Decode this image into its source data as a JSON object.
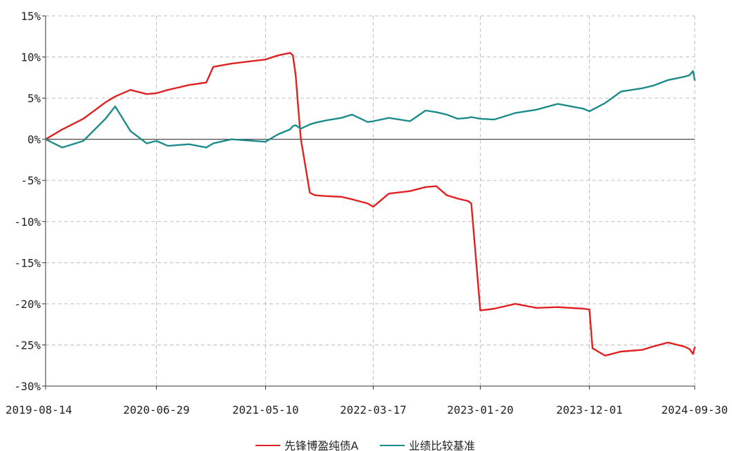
{
  "chart_data": {
    "type": "line",
    "title": "",
    "xlabel": "",
    "ylabel": "",
    "ylim": [
      -30,
      15
    ],
    "grid": true,
    "legend_position": "bottom-center",
    "x_tick_labels": [
      "2019-08-14",
      "2020-06-29",
      "2021-05-10",
      "2022-03-17",
      "2023-01-20",
      "2023-12-01",
      "2024-09-30"
    ],
    "y_ticks": [
      15,
      10,
      5,
      0,
      -5,
      -10,
      -15,
      -20,
      -25,
      -30
    ],
    "y_tick_labels": [
      "15%",
      "10%",
      "5%",
      "0%",
      "-5%",
      "-10%",
      "-15%",
      "-20%",
      "-25%",
      "-30%"
    ],
    "x": [
      "2019-08-14",
      "2019-10-01",
      "2019-12-01",
      "2020-02-03",
      "2020-03-02",
      "2020-04-15",
      "2020-06-01",
      "2020-06-29",
      "2020-08-01",
      "2020-10-01",
      "2020-11-20",
      "2020-12-10",
      "2021-02-01",
      "2021-05-10",
      "2021-06-15",
      "2021-07-20",
      "2021-07-28",
      "2021-08-05",
      "2021-08-12",
      "2021-08-20",
      "2021-09-15",
      "2021-09-30",
      "2021-11-01",
      "2021-12-15",
      "2022-01-15",
      "2022-03-01",
      "2022-03-17",
      "2022-05-01",
      "2022-07-01",
      "2022-08-15",
      "2022-09-15",
      "2022-10-15",
      "2022-11-15",
      "2022-12-15",
      "2022-12-25",
      "2023-01-20",
      "2023-03-01",
      "2023-05-01",
      "2023-07-01",
      "2023-09-01",
      "2023-11-15",
      "2023-12-01",
      "2023-12-10",
      "2024-01-15",
      "2024-03-01",
      "2024-05-01",
      "2024-06-01",
      "2024-07-15",
      "2024-08-31",
      "2024-09-15",
      "2024-09-25",
      "2024-09-30"
    ],
    "series": [
      {
        "name": "先锋博盈纯债A",
        "color": "#e02020",
        "values": [
          0,
          1.2,
          2.5,
          4.5,
          5.2,
          6.0,
          5.5,
          5.6,
          6.0,
          6.6,
          6.9,
          8.8,
          9.2,
          9.7,
          10.2,
          10.5,
          10.2,
          7.8,
          4.0,
          0,
          -6.5,
          -6.8,
          -6.9,
          -7.0,
          -7.3,
          -7.8,
          -8.2,
          -6.6,
          -6.3,
          -5.8,
          -5.7,
          -6.8,
          -7.2,
          -7.5,
          -7.8,
          -20.8,
          -20.6,
          -20.0,
          -20.5,
          -20.4,
          -20.6,
          -20.7,
          -25.4,
          -26.3,
          -25.8,
          -25.6,
          -25.2,
          -24.7,
          -25.2,
          -25.5,
          -26.1,
          -25.3
        ]
      },
      {
        "name": "业绩比较基准",
        "color": "#1a8a8a",
        "values": [
          0,
          -1.0,
          -0.2,
          2.5,
          4.0,
          1.0,
          -0.5,
          -0.2,
          -0.8,
          -0.6,
          -1.0,
          -0.5,
          0,
          -0.3,
          0.6,
          1.2,
          1.6,
          1.7,
          1.5,
          1.3,
          1.8,
          2.0,
          2.3,
          2.6,
          3.0,
          2.1,
          2.2,
          2.6,
          2.2,
          3.5,
          3.3,
          3.0,
          2.5,
          2.6,
          2.7,
          2.5,
          2.4,
          3.2,
          3.6,
          4.3,
          3.7,
          3.4,
          3.6,
          4.4,
          5.8,
          6.2,
          6.5,
          7.2,
          7.6,
          7.8,
          8.3,
          7.2
        ]
      }
    ]
  }
}
